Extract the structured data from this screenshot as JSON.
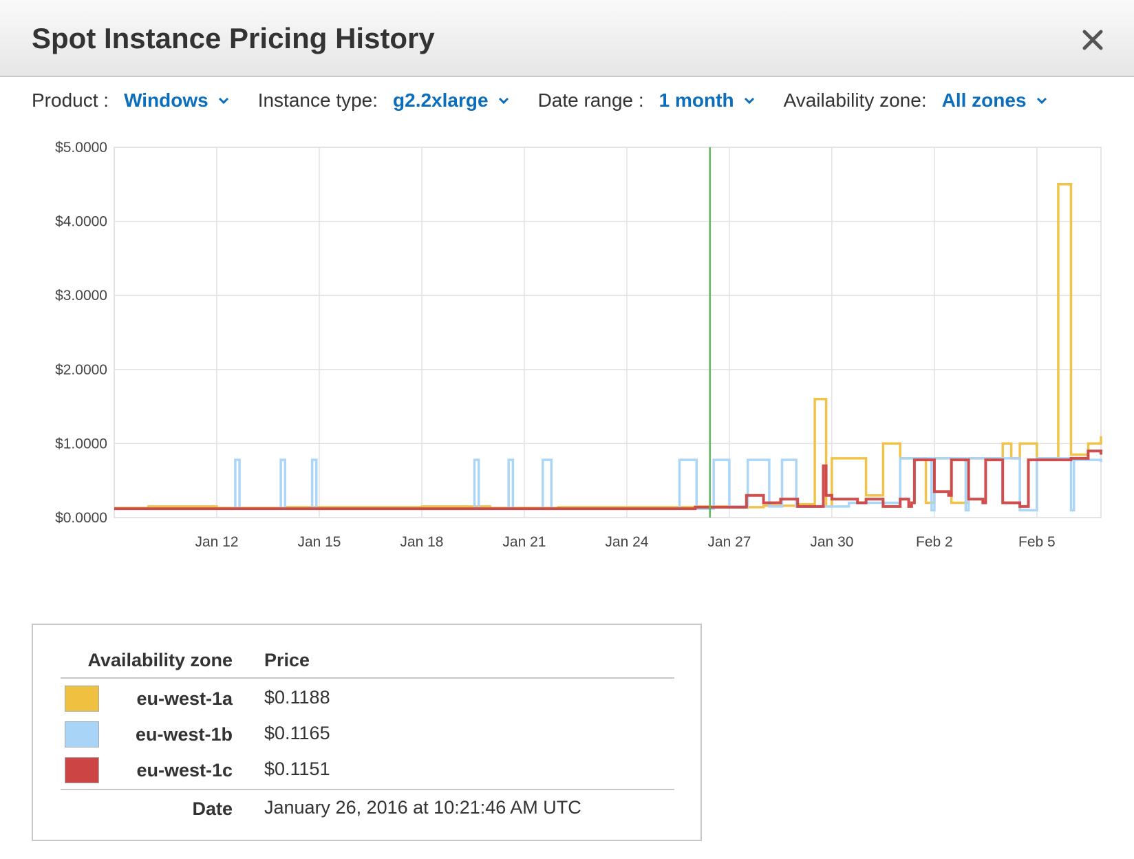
{
  "header": {
    "title": "Spot Instance Pricing History"
  },
  "filters": [
    {
      "label": "Product :",
      "value": "Windows"
    },
    {
      "label": "Instance type:",
      "value": "g2.2xlarge"
    },
    {
      "label": "Date range :",
      "value": "1 month"
    },
    {
      "label": "Availability zone:",
      "value": "All zones"
    }
  ],
  "colors": {
    "accent": "#0a6ebd",
    "cursor": "#5cb85c"
  },
  "chart_data": {
    "type": "line",
    "x_start": "2016-01-09",
    "x_end": "2016-02-06T21:00",
    "xticks": [
      {
        "date": "2016-01-12",
        "label": "Jan 12"
      },
      {
        "date": "2016-01-15",
        "label": "Jan 15"
      },
      {
        "date": "2016-01-18",
        "label": "Jan 18"
      },
      {
        "date": "2016-01-21",
        "label": "Jan 21"
      },
      {
        "date": "2016-01-24",
        "label": "Jan 24"
      },
      {
        "date": "2016-01-27",
        "label": "Jan 27"
      },
      {
        "date": "2016-01-30",
        "label": "Jan 30"
      },
      {
        "date": "2016-02-02",
        "label": "Feb 2"
      },
      {
        "date": "2016-02-05",
        "label": "Feb 5"
      }
    ],
    "ylim": [
      0,
      5
    ],
    "yticks": [
      {
        "value": 0,
        "label": "$0.0000"
      },
      {
        "value": 1,
        "label": "$1.0000"
      },
      {
        "value": 2,
        "label": "$2.0000"
      },
      {
        "value": 3,
        "label": "$3.0000"
      },
      {
        "value": 4,
        "label": "$4.0000"
      },
      {
        "value": 5,
        "label": "$5.0000"
      }
    ],
    "grid": true,
    "cursor_date": "2016-01-26T10:21:46",
    "series": [
      {
        "name": "eu-west-1a",
        "color": "#f0c040",
        "x": [
          "2016-01-09",
          "2016-01-10",
          "2016-01-12",
          "2016-01-14",
          "2016-01-16",
          "2016-01-18",
          "2016-01-20",
          "2016-01-22",
          "2016-01-24",
          "2016-01-26",
          "2016-01-27",
          "2016-01-28",
          "2016-01-29",
          "2016-01-29T12:00",
          "2016-01-29T14:00",
          "2016-01-29T20:00",
          "2016-01-30",
          "2016-01-30T12:00",
          "2016-01-31",
          "2016-01-31T12:00",
          "2016-02-01",
          "2016-02-01T06:00",
          "2016-02-01T18:00",
          "2016-02-02",
          "2016-02-02T12:00",
          "2016-02-03",
          "2016-02-03T12:00",
          "2016-02-04",
          "2016-02-04T06:00",
          "2016-02-04T12:00",
          "2016-02-05",
          "2016-02-05T12:00",
          "2016-02-05T15:00",
          "2016-02-05T21:00",
          "2016-02-06",
          "2016-02-06T12:00",
          "2016-02-06T21:00"
        ],
        "y": [
          0.13,
          0.15,
          0.13,
          0.14,
          0.14,
          0.15,
          0.13,
          0.14,
          0.14,
          0.15,
          0.14,
          0.16,
          0.18,
          1.6,
          1.6,
          0.15,
          0.8,
          0.8,
          0.3,
          1.0,
          0.8,
          0.8,
          0.2,
          0.8,
          0.2,
          0.8,
          0.8,
          1.0,
          0.8,
          1.0,
          0.8,
          0.8,
          4.5,
          4.5,
          0.85,
          1.0,
          1.1
        ]
      },
      {
        "name": "eu-west-1b",
        "color": "#a8d4f8",
        "x": [
          "2016-01-09",
          "2016-01-12T12:00",
          "2016-01-12T13:00",
          "2016-01-12T15:00",
          "2016-01-12T16:00",
          "2016-01-13T20:00",
          "2016-01-13T21:00",
          "2016-01-13T23:00",
          "2016-01-14",
          "2016-01-14T18:00",
          "2016-01-14T19:00",
          "2016-01-14T21:00",
          "2016-01-14T22:00",
          "2016-01-19T12:00",
          "2016-01-19T13:00",
          "2016-01-19T15:00",
          "2016-01-19T16:00",
          "2016-01-20T12:00",
          "2016-01-20T13:00",
          "2016-01-20T15:00",
          "2016-01-20T16:00",
          "2016-01-21T12:00",
          "2016-01-21T13:00",
          "2016-01-21T18:00",
          "2016-01-21T19:00",
          "2016-01-25T12:00",
          "2016-01-25T13:00",
          "2016-01-26",
          "2016-01-26T01:00",
          "2016-01-26T12:00",
          "2016-01-26T13:00",
          "2016-01-26T23:00",
          "2016-01-27",
          "2016-01-27T12:00",
          "2016-01-27T13:00",
          "2016-01-28T03:00",
          "2016-01-28T04:00",
          "2016-01-28T12:00",
          "2016-01-28T13:00",
          "2016-01-28T22:00",
          "2016-01-28T23:00",
          "2016-01-30T12:00",
          "2016-02-01",
          "2016-02-01T22:00",
          "2016-02-02",
          "2016-02-02T22:00",
          "2016-02-03",
          "2016-02-04",
          "2016-02-04T12:00",
          "2016-02-04T22:00",
          "2016-02-05",
          "2016-02-05T12:00",
          "2016-02-06",
          "2016-02-06T02:00",
          "2016-02-06T21:00"
        ],
        "y": [
          0.12,
          0.12,
          0.78,
          0.78,
          0.12,
          0.12,
          0.78,
          0.78,
          0.12,
          0.12,
          0.78,
          0.78,
          0.12,
          0.12,
          0.78,
          0.78,
          0.12,
          0.12,
          0.78,
          0.78,
          0.12,
          0.12,
          0.78,
          0.78,
          0.12,
          0.12,
          0.78,
          0.78,
          0.12,
          0.12,
          0.78,
          0.78,
          0.15,
          0.15,
          0.78,
          0.78,
          0.15,
          0.15,
          0.78,
          0.78,
          0.15,
          0.2,
          0.8,
          0.1,
          0.8,
          0.1,
          0.8,
          0.8,
          0.1,
          0.1,
          0.8,
          0.8,
          0.1,
          0.78,
          0.75
        ]
      },
      {
        "name": "eu-west-1c",
        "color": "#cc4444",
        "x": [
          "2016-01-09",
          "2016-01-12",
          "2016-01-15",
          "2016-01-18",
          "2016-01-21",
          "2016-01-24",
          "2016-01-26",
          "2016-01-27",
          "2016-01-27T12:00",
          "2016-01-28",
          "2016-01-28T12:00",
          "2016-01-29",
          "2016-01-29T18:00",
          "2016-01-29T20:00",
          "2016-01-30",
          "2016-01-30T18:00",
          "2016-01-31",
          "2016-01-31T12:00",
          "2016-02-01",
          "2016-02-01T06:00",
          "2016-02-01T08:00",
          "2016-02-01T10:00",
          "2016-02-01T22:00",
          "2016-02-02",
          "2016-02-02T10:00",
          "2016-02-02T12:00",
          "2016-02-02T22:00",
          "2016-02-03",
          "2016-02-03T10:00",
          "2016-02-03T12:00",
          "2016-02-03T22:00",
          "2016-02-04",
          "2016-02-04T12:00",
          "2016-02-04T18:00",
          "2016-02-05",
          "2016-02-05T12:00",
          "2016-02-06",
          "2016-02-06T12:00",
          "2016-02-06T21:00"
        ],
        "y": [
          0.12,
          0.12,
          0.12,
          0.12,
          0.12,
          0.12,
          0.14,
          0.14,
          0.3,
          0.2,
          0.25,
          0.15,
          0.7,
          0.3,
          0.25,
          0.2,
          0.25,
          0.15,
          0.25,
          0.15,
          0.2,
          0.78,
          0.78,
          0.35,
          0.3,
          0.78,
          0.78,
          0.25,
          0.2,
          0.78,
          0.78,
          0.2,
          0.15,
          0.78,
          0.78,
          0.78,
          0.8,
          0.9,
          0.85
        ]
      }
    ]
  },
  "legend": {
    "col_zone": "Availability zone",
    "col_price": "Price",
    "rows": [
      {
        "zone": "eu-west-1a",
        "price": "$0.1188",
        "color": "#f0c040"
      },
      {
        "zone": "eu-west-1b",
        "price": "$0.1165",
        "color": "#a8d4f8"
      },
      {
        "zone": "eu-west-1c",
        "price": "$0.1151",
        "color": "#cc4444"
      }
    ],
    "date_label": "Date",
    "date_value": "January 26, 2016 at 10:21:46 AM UTC"
  }
}
